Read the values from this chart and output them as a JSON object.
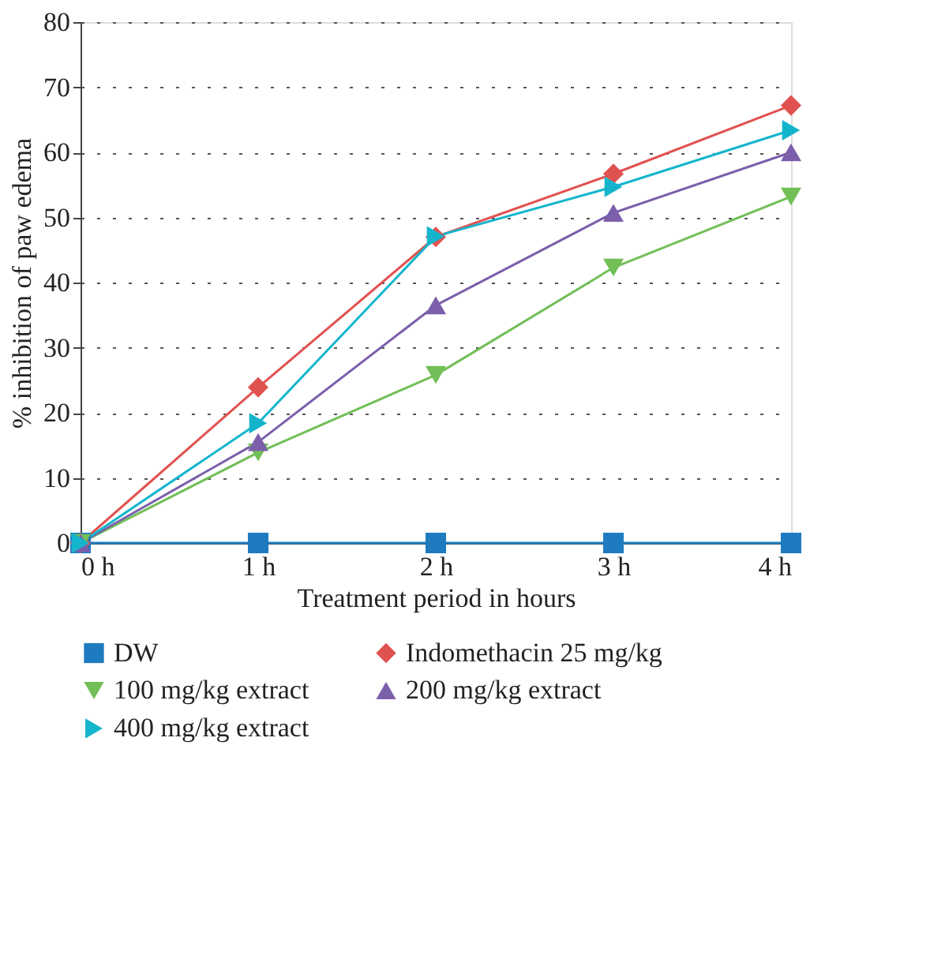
{
  "chart_data": {
    "type": "line",
    "xlabel": "Treatment period in hours",
    "ylabel": "% inhibition of paw edema",
    "categories": [
      "0 h",
      "1 h",
      "2 h",
      "3 h",
      "4 h"
    ],
    "ylim": [
      0,
      80
    ],
    "yticks": [
      0,
      10,
      20,
      30,
      40,
      50,
      60,
      70,
      80
    ],
    "grid": "y",
    "legend": "bottom",
    "line_style": "solid",
    "series": [
      {
        "name": "DW",
        "color": "#1f7bc0",
        "marker": "square",
        "values": [
          0,
          0,
          0,
          0,
          0
        ]
      },
      {
        "name": "Indomethacin 25 mg/kg",
        "color": "#e05250",
        "marker": "diamond",
        "values": [
          0,
          23.9,
          47,
          56.7,
          67.2
        ]
      },
      {
        "name": "100 mg/kg extract",
        "color": "#72bf57",
        "marker": "triangle-down",
        "values": [
          0,
          13.9,
          25.8,
          42.3,
          53.2
        ]
      },
      {
        "name": "200 mg/kg extract",
        "color": "#7b5fab",
        "marker": "triangle-up",
        "values": [
          0,
          15.5,
          36.5,
          50.7,
          60
        ]
      },
      {
        "name": "400 mg/kg extract",
        "color": "#14b5cc",
        "marker": "triangle-right",
        "values": [
          0,
          18.4,
          47.1,
          54.7,
          63.4
        ]
      }
    ]
  }
}
